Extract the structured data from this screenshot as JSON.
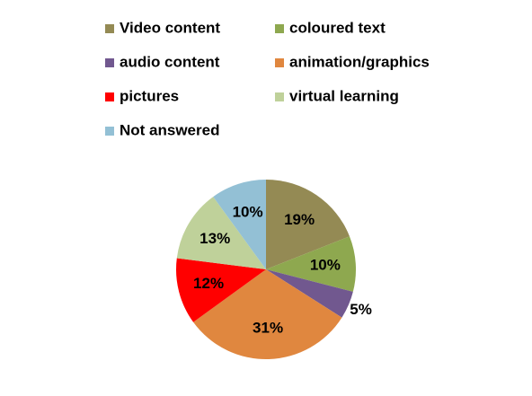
{
  "chart_data": {
    "type": "pie",
    "categories": [
      "Video content",
      "coloured text",
      "audio content",
      "animation/graphics",
      "pictures",
      "virtual learning",
      "Not answered"
    ],
    "values": [
      19,
      10,
      5,
      31,
      12,
      13,
      10
    ],
    "value_labels": [
      "19%",
      "10%",
      "5%",
      "31%",
      "12%",
      "13%",
      "10%"
    ],
    "colors": [
      "#948a54",
      "#8ea84f",
      "#71588f",
      "#e0873f",
      "#ff0000",
      "#bfd19a",
      "#93c0d5"
    ],
    "legend": "top"
  }
}
